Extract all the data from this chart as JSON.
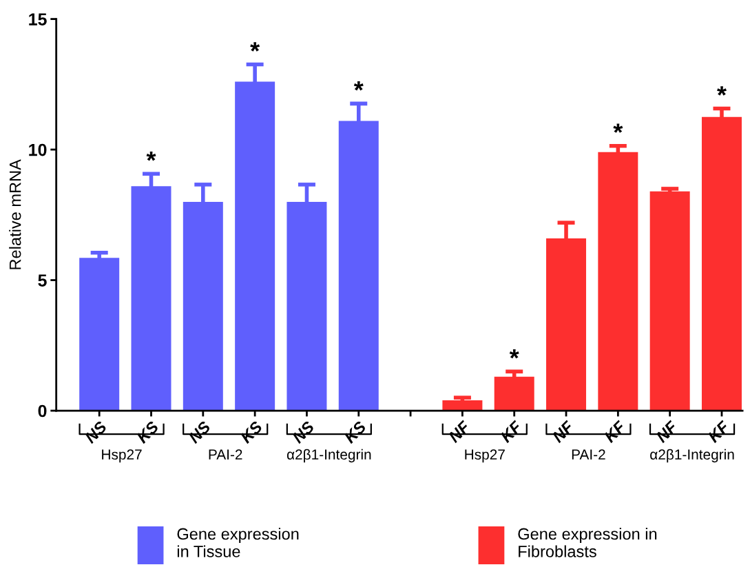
{
  "chart_data": {
    "type": "bar",
    "ylabel": "Relative mRNA",
    "categories": [
      "NS",
      "KS",
      "NS",
      "KS",
      "NS",
      "KS",
      null,
      "NF",
      "KF",
      "NF",
      "KF",
      "NF",
      "KF"
    ],
    "series": [
      {
        "name": "Gene expression\nin Tissue",
        "color": "#5f5ffd",
        "values": [
          5.85,
          8.6,
          8.0,
          12.6,
          8.0,
          11.1,
          null,
          null,
          null,
          null,
          null,
          null,
          null
        ],
        "errors": [
          0.2,
          0.47,
          0.66,
          0.66,
          0.66,
          0.66,
          null,
          null,
          null,
          null,
          null,
          null,
          null
        ],
        "value_labels": [
          null,
          "*",
          null,
          "*",
          null,
          "*",
          null,
          null,
          null,
          null,
          null,
          null,
          null
        ]
      },
      {
        "name": "Gene expression in\nFibroblasts",
        "color": "#fd2f2f",
        "values": [
          null,
          null,
          null,
          null,
          null,
          null,
          null,
          0.4,
          1.3,
          6.6,
          9.9,
          8.4,
          11.25
        ],
        "errors": [
          null,
          null,
          null,
          null,
          null,
          null,
          null,
          0.1,
          0.2,
          0.6,
          0.24,
          0.1,
          0.32
        ],
        "value_labels": [
          null,
          null,
          null,
          null,
          null,
          null,
          null,
          null,
          "*",
          null,
          "*",
          null,
          "*"
        ]
      }
    ],
    "annotations": [
      "Hsp27",
      "PAI-2",
      "α2β1-Integrin",
      "Hsp27",
      "PAI-2",
      "α2β1-Integrin"
    ],
    "ylim": [
      0,
      15
    ],
    "yticks": [
      0,
      5,
      10,
      15
    ],
    "grid": false,
    "legend": "bottom"
  }
}
